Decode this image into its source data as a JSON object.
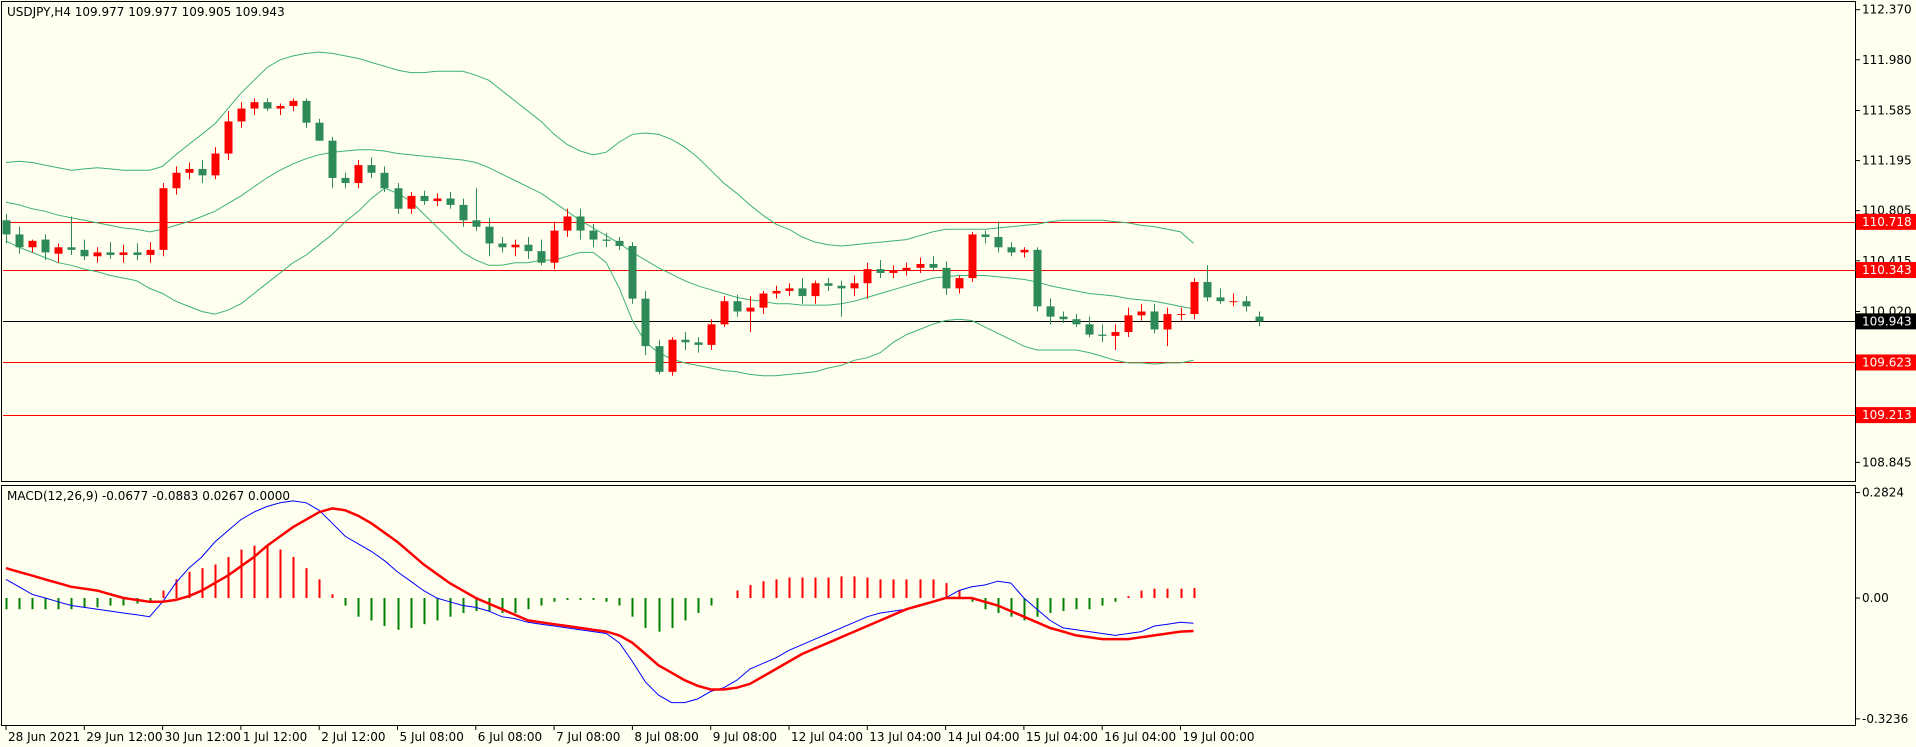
{
  "chart_data": [
    {
      "type": "candlestick",
      "title": "USDJPY,H4  109.977 109.977 109.905 109.943",
      "symbol": "USDJPY,H4",
      "ohlc_header": "109.977 109.977 109.905 109.943",
      "ylim": [
        108.7,
        112.43
      ],
      "y_ticks": [
        "112.370",
        "111.980",
        "111.585",
        "111.195",
        "110.805",
        "110.415",
        "110.020",
        "108.845"
      ],
      "x_tick_labels": [
        "28 Jun 2021",
        "29 Jun 12:00",
        "30 Jun 12:00",
        "1 Jul 12:00",
        "2 Jul 12:00",
        "5 Jul 08:00",
        "6 Jul 08:00",
        "7 Jul 08:00",
        "8 Jul 08:00",
        "9 Jul 08:00",
        "12 Jul 04:00",
        "13 Jul 04:00",
        "14 Jul 04:00",
        "15 Jul 04:00",
        "16 Jul 04:00",
        "19 Jul 00:00"
      ],
      "x_tick_index": [
        0,
        6,
        12,
        18,
        24,
        30,
        36,
        42,
        48,
        54,
        60,
        66,
        72,
        78,
        84,
        90
      ],
      "horizontal_lines": [
        {
          "value": 110.718,
          "label": "110.718",
          "color": "#FF0000"
        },
        {
          "value": 110.343,
          "label": "110.343",
          "color": "#FF0000"
        },
        {
          "value": 109.623,
          "label": "109.623",
          "color": "#FF0000"
        },
        {
          "value": 109.213,
          "label": "109.213",
          "color": "#FF0000"
        }
      ],
      "current_price": {
        "value": 109.943,
        "label": "109.943",
        "color": "#000000"
      },
      "bull_color": "#FF0000",
      "bear_color": "#2E8B57",
      "band_color": "#3CB371",
      "candles": [
        [
          110.73,
          110.78,
          110.55,
          110.62
        ],
        [
          110.62,
          110.68,
          110.47,
          110.52
        ],
        [
          110.52,
          110.58,
          110.48,
          110.57
        ],
        [
          110.58,
          110.62,
          110.42,
          110.48
        ],
        [
          110.47,
          110.55,
          110.4,
          110.52
        ],
        [
          110.52,
          110.76,
          110.46,
          110.5
        ],
        [
          110.5,
          110.58,
          110.42,
          110.45
        ],
        [
          110.45,
          110.52,
          110.4,
          110.48
        ],
        [
          110.48,
          110.56,
          110.43,
          110.46
        ],
        [
          110.46,
          110.54,
          110.4,
          110.48
        ],
        [
          110.48,
          110.55,
          110.42,
          110.46
        ],
        [
          110.46,
          110.56,
          110.4,
          110.5
        ],
        [
          110.5,
          111.02,
          110.45,
          110.98
        ],
        [
          110.98,
          111.15,
          110.93,
          111.1
        ],
        [
          111.1,
          111.18,
          111.05,
          111.13
        ],
        [
          111.13,
          111.2,
          111.02,
          111.08
        ],
        [
          111.08,
          111.3,
          111.05,
          111.25
        ],
        [
          111.25,
          111.58,
          111.2,
          111.5
        ],
        [
          111.5,
          111.65,
          111.45,
          111.6
        ],
        [
          111.6,
          111.68,
          111.55,
          111.65
        ],
        [
          111.65,
          111.68,
          111.58,
          111.6
        ],
        [
          111.6,
          111.64,
          111.55,
          111.62
        ],
        [
          111.62,
          111.68,
          111.58,
          111.66
        ],
        [
          111.66,
          111.68,
          111.45,
          111.49
        ],
        [
          111.49,
          111.52,
          111.35,
          111.35
        ],
        [
          111.35,
          111.38,
          110.98,
          111.06
        ],
        [
          111.06,
          111.1,
          110.98,
          111.02
        ],
        [
          111.02,
          111.2,
          110.98,
          111.16
        ],
        [
          111.16,
          111.22,
          111.06,
          111.1
        ],
        [
          111.1,
          111.15,
          110.95,
          110.98
        ],
        [
          110.98,
          111.02,
          110.78,
          110.82
        ],
        [
          110.82,
          110.95,
          110.78,
          110.92
        ],
        [
          110.92,
          110.96,
          110.85,
          110.88
        ],
        [
          110.88,
          110.94,
          110.84,
          110.9
        ],
        [
          110.9,
          110.95,
          110.82,
          110.85
        ],
        [
          110.85,
          110.9,
          110.68,
          110.73
        ],
        [
          110.73,
          110.98,
          110.65,
          110.68
        ],
        [
          110.68,
          110.75,
          110.45,
          110.55
        ],
        [
          110.55,
          110.6,
          110.48,
          110.52
        ],
        [
          110.52,
          110.58,
          110.45,
          110.54
        ],
        [
          110.54,
          110.6,
          110.43,
          110.49
        ],
        [
          110.49,
          110.58,
          110.38,
          110.4
        ],
        [
          110.4,
          110.72,
          110.35,
          110.65
        ],
        [
          110.65,
          110.82,
          110.6,
          110.76
        ],
        [
          110.76,
          110.82,
          110.58,
          110.65
        ],
        [
          110.65,
          110.7,
          110.52,
          110.58
        ],
        [
          110.58,
          110.63,
          110.52,
          110.57
        ],
        [
          110.57,
          110.6,
          110.5,
          110.53
        ],
        [
          110.53,
          110.56,
          110.08,
          110.12
        ],
        [
          110.12,
          110.18,
          109.68,
          109.75
        ],
        [
          109.75,
          109.8,
          109.53,
          109.55
        ],
        [
          109.55,
          109.82,
          109.52,
          109.8
        ],
        [
          109.8,
          109.86,
          109.72,
          109.78
        ],
        [
          109.78,
          109.82,
          109.7,
          109.76
        ],
        [
          109.76,
          109.96,
          109.72,
          109.92
        ],
        [
          109.92,
          110.14,
          109.9,
          110.1
        ],
        [
          110.1,
          110.15,
          109.98,
          110.02
        ],
        [
          110.02,
          110.14,
          109.86,
          110.05
        ],
        [
          110.05,
          110.18,
          110.0,
          110.16
        ],
        [
          110.16,
          110.22,
          110.12,
          110.18
        ],
        [
          110.18,
          110.24,
          110.14,
          110.2
        ],
        [
          110.2,
          110.28,
          110.08,
          110.14
        ],
        [
          110.14,
          110.26,
          110.08,
          110.24
        ],
        [
          110.24,
          110.28,
          110.18,
          110.22
        ],
        [
          110.22,
          110.26,
          109.98,
          110.2
        ],
        [
          110.2,
          110.3,
          110.14,
          110.24
        ],
        [
          110.24,
          110.4,
          110.12,
          110.35
        ],
        [
          110.35,
          110.42,
          110.28,
          110.32
        ],
        [
          110.32,
          110.38,
          110.28,
          110.34
        ],
        [
          110.34,
          110.4,
          110.3,
          110.36
        ],
        [
          110.36,
          110.44,
          110.32,
          110.39
        ],
        [
          110.39,
          110.45,
          110.34,
          110.36
        ],
        [
          110.36,
          110.41,
          110.15,
          110.2
        ],
        [
          110.2,
          110.3,
          110.16,
          110.28
        ],
        [
          110.28,
          110.64,
          110.25,
          110.62
        ],
        [
          110.62,
          110.65,
          110.55,
          110.6
        ],
        [
          110.6,
          110.72,
          110.48,
          110.52
        ],
        [
          110.52,
          110.56,
          110.45,
          110.48
        ],
        [
          110.48,
          110.52,
          110.44,
          110.5
        ],
        [
          110.5,
          110.52,
          110.02,
          110.06
        ],
        [
          110.06,
          110.12,
          109.92,
          109.98
        ],
        [
          109.98,
          110.02,
          109.93,
          109.96
        ],
        [
          109.96,
          110.0,
          109.9,
          109.92
        ],
        [
          109.92,
          109.98,
          109.82,
          109.84
        ],
        [
          109.84,
          109.92,
          109.78,
          109.83
        ],
        [
          109.83,
          109.92,
          109.72,
          109.86
        ],
        [
          109.86,
          110.05,
          109.82,
          109.99
        ],
        [
          109.99,
          110.08,
          109.95,
          110.02
        ],
        [
          110.02,
          110.08,
          109.85,
          109.88
        ],
        [
          109.88,
          110.05,
          109.75,
          110.0
        ],
        [
          110.0,
          110.05,
          109.95,
          110.0
        ],
        [
          110.0,
          110.28,
          109.96,
          110.25
        ],
        [
          110.25,
          110.38,
          110.1,
          110.13
        ],
        [
          110.13,
          110.2,
          110.08,
          110.1
        ],
        [
          110.1,
          110.16,
          110.06,
          110.1
        ],
        [
          110.1,
          110.14,
          110.02,
          110.06
        ],
        [
          109.98,
          110.02,
          109.905,
          109.943
        ]
      ],
      "bollinger_upper": [
        111.18,
        111.19,
        111.18,
        111.16,
        111.14,
        111.12,
        111.13,
        111.14,
        111.13,
        111.12,
        111.12,
        111.12,
        111.15,
        111.24,
        111.32,
        111.4,
        111.48,
        111.6,
        111.72,
        111.82,
        111.92,
        111.98,
        112.01,
        112.03,
        112.04,
        112.03,
        112.01,
        111.99,
        111.96,
        111.93,
        111.9,
        111.88,
        111.88,
        111.89,
        111.89,
        111.89,
        111.86,
        111.82,
        111.74,
        111.66,
        111.58,
        111.5,
        111.4,
        111.32,
        111.27,
        111.24,
        111.26,
        111.34,
        111.4,
        111.41,
        111.4,
        111.36,
        111.3,
        111.22,
        111.12,
        111.02,
        110.94,
        110.85,
        110.77,
        110.7,
        110.66,
        110.6,
        110.56,
        110.54,
        110.53,
        110.54,
        110.55,
        110.56,
        110.57,
        110.58,
        110.61,
        110.64,
        110.66,
        110.66,
        110.66,
        110.66,
        110.67,
        110.68,
        110.69,
        110.7,
        110.72,
        110.73,
        110.73,
        110.73,
        110.73,
        110.72,
        110.71,
        110.69,
        110.68,
        110.66,
        110.64,
        110.55
      ],
      "bollinger_middle": [
        110.87,
        110.85,
        110.82,
        110.8,
        110.77,
        110.75,
        110.73,
        110.71,
        110.69,
        110.67,
        110.66,
        110.64,
        110.66,
        110.69,
        110.72,
        110.76,
        110.8,
        110.86,
        110.92,
        110.99,
        111.06,
        111.12,
        111.17,
        111.21,
        111.24,
        111.26,
        111.27,
        111.28,
        111.28,
        111.27,
        111.25,
        111.24,
        111.23,
        111.22,
        111.21,
        111.2,
        111.18,
        111.14,
        111.09,
        111.04,
        110.99,
        110.94,
        110.87,
        110.8,
        110.73,
        110.67,
        110.61,
        110.55,
        110.48,
        110.42,
        110.36,
        110.31,
        110.26,
        110.22,
        110.19,
        110.16,
        110.13,
        110.11,
        110.1,
        110.08,
        110.08,
        110.07,
        110.07,
        110.07,
        110.08,
        110.1,
        110.13,
        110.16,
        110.19,
        110.22,
        110.25,
        110.28,
        110.29,
        110.3,
        110.3,
        110.3,
        110.29,
        110.28,
        110.27,
        110.25,
        110.22,
        110.2,
        110.18,
        110.16,
        110.15,
        110.14,
        110.12,
        110.11,
        110.1,
        110.08,
        110.06,
        110.04
      ],
      "bollinger_lower": [
        110.57,
        110.52,
        110.48,
        110.44,
        110.4,
        110.38,
        110.35,
        110.33,
        110.3,
        110.28,
        110.26,
        110.2,
        110.16,
        110.1,
        110.06,
        110.02,
        110.0,
        110.03,
        110.08,
        110.16,
        110.24,
        110.32,
        110.4,
        110.46,
        110.54,
        110.62,
        110.72,
        110.8,
        110.9,
        110.98,
        110.94,
        110.88,
        110.78,
        110.68,
        110.58,
        110.48,
        110.42,
        110.38,
        110.38,
        110.4,
        110.4,
        110.42,
        110.42,
        110.45,
        110.48,
        110.48,
        110.4,
        110.2,
        109.95,
        109.78,
        109.7,
        109.65,
        109.62,
        109.6,
        109.58,
        109.56,
        109.55,
        109.53,
        109.52,
        109.52,
        109.53,
        109.54,
        109.55,
        109.58,
        109.6,
        109.64,
        109.66,
        109.7,
        109.78,
        109.84,
        109.88,
        109.92,
        109.95,
        109.96,
        109.95,
        109.9,
        109.85,
        109.8,
        109.75,
        109.72,
        109.72,
        109.72,
        109.72,
        109.7,
        109.67,
        109.64,
        109.62,
        109.62,
        109.61,
        109.62,
        109.62,
        109.64
      ]
    },
    {
      "type": "macd",
      "title": "MACD(12,26,9) -0.0677 -0.0883 0.0267 0.0000",
      "ylim": [
        -0.34,
        0.3
      ],
      "y_ticks": [
        "0.2824",
        "0.00",
        "-0.3236"
      ],
      "histogram_up_color": "#FF0000",
      "histogram_down_color": "#008000",
      "macd_color": "#0000FF",
      "signal_color": "#FF0000",
      "histogram": [
        -0.03,
        -0.03,
        -0.03,
        -0.03,
        -0.03,
        -0.03,
        -0.025,
        -0.025,
        -0.02,
        -0.02,
        -0.015,
        -0.01,
        0.02,
        0.05,
        0.07,
        0.08,
        0.09,
        0.11,
        0.13,
        0.14,
        0.14,
        0.13,
        0.11,
        0.08,
        0.05,
        0.01,
        -0.02,
        -0.05,
        -0.06,
        -0.075,
        -0.085,
        -0.08,
        -0.07,
        -0.06,
        -0.05,
        -0.04,
        -0.035,
        -0.035,
        -0.04,
        -0.04,
        -0.03,
        -0.02,
        -0.01,
        -0.005,
        -0.005,
        -0.005,
        -0.01,
        -0.02,
        -0.05,
        -0.08,
        -0.09,
        -0.08,
        -0.06,
        -0.04,
        -0.02,
        0.0,
        0.02,
        0.035,
        0.045,
        0.05,
        0.055,
        0.055,
        0.055,
        0.055,
        0.058,
        0.058,
        0.055,
        0.05,
        0.05,
        0.05,
        0.05,
        0.05,
        0.04,
        0.02,
        -0.01,
        -0.03,
        -0.04,
        -0.05,
        -0.06,
        -0.05,
        -0.04,
        -0.035,
        -0.03,
        -0.03,
        -0.02,
        -0.01,
        0.005,
        0.02,
        0.025,
        0.025,
        0.025,
        0.0267
      ],
      "macd": [
        0.05,
        0.03,
        0.01,
        0.0,
        -0.01,
        -0.02,
        -0.025,
        -0.03,
        -0.035,
        -0.04,
        -0.045,
        -0.05,
        -0.01,
        0.04,
        0.08,
        0.11,
        0.15,
        0.18,
        0.21,
        0.23,
        0.245,
        0.255,
        0.26,
        0.255,
        0.235,
        0.2,
        0.165,
        0.145,
        0.125,
        0.1,
        0.07,
        0.045,
        0.02,
        0.0,
        -0.01,
        -0.02,
        -0.025,
        -0.035,
        -0.05,
        -0.055,
        -0.065,
        -0.07,
        -0.075,
        -0.08,
        -0.085,
        -0.09,
        -0.095,
        -0.12,
        -0.17,
        -0.225,
        -0.26,
        -0.28,
        -0.28,
        -0.27,
        -0.25,
        -0.24,
        -0.22,
        -0.19,
        -0.175,
        -0.16,
        -0.14,
        -0.125,
        -0.11,
        -0.095,
        -0.08,
        -0.065,
        -0.05,
        -0.04,
        -0.035,
        -0.03,
        -0.02,
        -0.01,
        0.0,
        0.02,
        0.03,
        0.035,
        0.045,
        0.04,
        0.0,
        -0.03,
        -0.06,
        -0.08,
        -0.085,
        -0.09,
        -0.095,
        -0.1,
        -0.095,
        -0.09,
        -0.075,
        -0.07,
        -0.065,
        -0.0677
      ],
      "signal": [
        0.08,
        0.07,
        0.06,
        0.05,
        0.04,
        0.03,
        0.025,
        0.02,
        0.01,
        0.0,
        -0.005,
        -0.01,
        -0.01,
        -0.005,
        0.005,
        0.02,
        0.04,
        0.06,
        0.085,
        0.11,
        0.14,
        0.165,
        0.19,
        0.21,
        0.23,
        0.24,
        0.235,
        0.22,
        0.2,
        0.175,
        0.15,
        0.12,
        0.09,
        0.065,
        0.04,
        0.02,
        0.0,
        -0.015,
        -0.03,
        -0.045,
        -0.06,
        -0.065,
        -0.07,
        -0.075,
        -0.08,
        -0.085,
        -0.09,
        -0.1,
        -0.12,
        -0.15,
        -0.18,
        -0.2,
        -0.22,
        -0.235,
        -0.245,
        -0.245,
        -0.24,
        -0.23,
        -0.21,
        -0.19,
        -0.17,
        -0.15,
        -0.135,
        -0.12,
        -0.105,
        -0.09,
        -0.075,
        -0.06,
        -0.045,
        -0.03,
        -0.02,
        -0.01,
        0.0,
        0.0,
        0.0,
        -0.01,
        -0.02,
        -0.035,
        -0.05,
        -0.065,
        -0.08,
        -0.09,
        -0.1,
        -0.105,
        -0.11,
        -0.11,
        -0.11,
        -0.105,
        -0.1,
        -0.095,
        -0.09,
        -0.0883
      ]
    }
  ]
}
